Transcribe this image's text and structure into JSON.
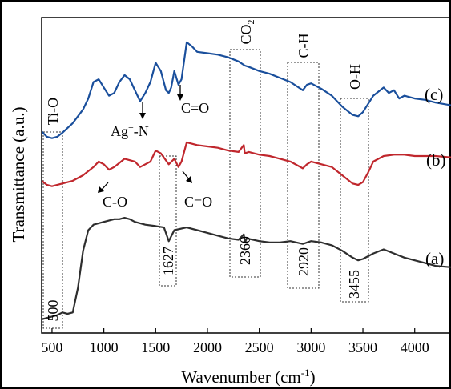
{
  "chart_data": {
    "type": "line",
    "title": "",
    "xlabel": "Wavenumber",
    "xlabel_unit": "(cm",
    "xlabel_unit_exp": "-1",
    "xlabel_unit_close": ")",
    "ylabel": "Transmittance (a.u.)",
    "xlim": [
      400,
      4350
    ],
    "x_ticks": [
      500,
      1000,
      1500,
      2000,
      2500,
      3000,
      3500,
      4000
    ],
    "x_tick_labels": [
      "500",
      "1000",
      "1500",
      "2000",
      "2500",
      "3000",
      "3500",
      "4000"
    ],
    "y_ticks_shown": false,
    "series": [
      {
        "name": "(a)",
        "color": "#2e2e2e",
        "points": [
          [
            400,
            0.05
          ],
          [
            450,
            0.06
          ],
          [
            500,
            0.07
          ],
          [
            550,
            0.08
          ],
          [
            600,
            0.1
          ],
          [
            650,
            0.09
          ],
          [
            700,
            0.1
          ],
          [
            750,
            0.28
          ],
          [
            800,
            0.55
          ],
          [
            850,
            0.7
          ],
          [
            900,
            0.74
          ],
          [
            1000,
            0.76
          ],
          [
            1100,
            0.78
          ],
          [
            1150,
            0.78
          ],
          [
            1200,
            0.79
          ],
          [
            1250,
            0.78
          ],
          [
            1300,
            0.76
          ],
          [
            1400,
            0.74
          ],
          [
            1500,
            0.73
          ],
          [
            1580,
            0.72
          ],
          [
            1627,
            0.62
          ],
          [
            1680,
            0.7
          ],
          [
            1800,
            0.72
          ],
          [
            1900,
            0.7
          ],
          [
            2000,
            0.68
          ],
          [
            2100,
            0.66
          ],
          [
            2200,
            0.64
          ],
          [
            2300,
            0.63
          ],
          [
            2350,
            0.67
          ],
          [
            2360,
            0.61
          ],
          [
            2380,
            0.64
          ],
          [
            2500,
            0.62
          ],
          [
            2600,
            0.61
          ],
          [
            2700,
            0.61
          ],
          [
            2800,
            0.62
          ],
          [
            2920,
            0.6
          ],
          [
            3000,
            0.62
          ],
          [
            3100,
            0.61
          ],
          [
            3200,
            0.59
          ],
          [
            3300,
            0.55
          ],
          [
            3400,
            0.5
          ],
          [
            3455,
            0.48
          ],
          [
            3500,
            0.49
          ],
          [
            3600,
            0.53
          ],
          [
            3700,
            0.56
          ],
          [
            3800,
            0.53
          ],
          [
            3900,
            0.5
          ],
          [
            4000,
            0.48
          ],
          [
            4100,
            0.46
          ],
          [
            4200,
            0.44
          ],
          [
            4350,
            0.43
          ]
        ]
      },
      {
        "name": "(b)",
        "color": "#c0272d",
        "points": [
          [
            400,
            1.06
          ],
          [
            450,
            1.03
          ],
          [
            500,
            1.02
          ],
          [
            600,
            1.04
          ],
          [
            700,
            1.06
          ],
          [
            800,
            1.1
          ],
          [
            900,
            1.16
          ],
          [
            950,
            1.2
          ],
          [
            1000,
            1.18
          ],
          [
            1050,
            1.14
          ],
          [
            1100,
            1.16
          ],
          [
            1150,
            1.19
          ],
          [
            1200,
            1.22
          ],
          [
            1250,
            1.21
          ],
          [
            1300,
            1.2
          ],
          [
            1350,
            1.16
          ],
          [
            1400,
            1.18
          ],
          [
            1450,
            1.2
          ],
          [
            1500,
            1.28
          ],
          [
            1550,
            1.26
          ],
          [
            1627,
            1.18
          ],
          [
            1680,
            1.22
          ],
          [
            1720,
            1.16
          ],
          [
            1750,
            1.2
          ],
          [
            1800,
            1.34
          ],
          [
            1900,
            1.32
          ],
          [
            2000,
            1.31
          ],
          [
            2100,
            1.3
          ],
          [
            2200,
            1.28
          ],
          [
            2300,
            1.27
          ],
          [
            2350,
            1.32
          ],
          [
            2360,
            1.26
          ],
          [
            2400,
            1.27
          ],
          [
            2500,
            1.25
          ],
          [
            2600,
            1.24
          ],
          [
            2700,
            1.22
          ],
          [
            2800,
            1.2
          ],
          [
            2920,
            1.15
          ],
          [
            2960,
            1.18
          ],
          [
            3000,
            1.2
          ],
          [
            3100,
            1.18
          ],
          [
            3200,
            1.16
          ],
          [
            3300,
            1.1
          ],
          [
            3400,
            1.04
          ],
          [
            3455,
            1.03
          ],
          [
            3500,
            1.05
          ],
          [
            3550,
            1.12
          ],
          [
            3600,
            1.2
          ],
          [
            3700,
            1.24
          ],
          [
            3800,
            1.25
          ],
          [
            3900,
            1.25
          ],
          [
            4000,
            1.24
          ],
          [
            4100,
            1.24
          ],
          [
            4200,
            1.24
          ],
          [
            4350,
            1.23
          ]
        ]
      },
      {
        "name": "(c)",
        "color": "#1a4f9c",
        "points": [
          [
            400,
            1.42
          ],
          [
            450,
            1.38
          ],
          [
            500,
            1.37
          ],
          [
            550,
            1.38
          ],
          [
            600,
            1.41
          ],
          [
            700,
            1.48
          ],
          [
            800,
            1.58
          ],
          [
            850,
            1.66
          ],
          [
            900,
            1.78
          ],
          [
            950,
            1.8
          ],
          [
            1000,
            1.74
          ],
          [
            1050,
            1.68
          ],
          [
            1100,
            1.7
          ],
          [
            1150,
            1.78
          ],
          [
            1200,
            1.83
          ],
          [
            1250,
            1.8
          ],
          [
            1300,
            1.72
          ],
          [
            1350,
            1.64
          ],
          [
            1400,
            1.7
          ],
          [
            1450,
            1.78
          ],
          [
            1500,
            1.92
          ],
          [
            1550,
            1.86
          ],
          [
            1600,
            1.72
          ],
          [
            1627,
            1.7
          ],
          [
            1650,
            1.74
          ],
          [
            1680,
            1.86
          ],
          [
            1720,
            1.76
          ],
          [
            1750,
            1.8
          ],
          [
            1800,
            2.07
          ],
          [
            1850,
            2.04
          ],
          [
            1900,
            2.0
          ],
          [
            2000,
            1.99
          ],
          [
            2100,
            1.98
          ],
          [
            2200,
            1.96
          ],
          [
            2300,
            1.93
          ],
          [
            2360,
            1.9
          ],
          [
            2400,
            1.89
          ],
          [
            2500,
            1.86
          ],
          [
            2600,
            1.84
          ],
          [
            2700,
            1.81
          ],
          [
            2800,
            1.78
          ],
          [
            2920,
            1.72
          ],
          [
            2960,
            1.76
          ],
          [
            3000,
            1.77
          ],
          [
            3100,
            1.73
          ],
          [
            3200,
            1.68
          ],
          [
            3300,
            1.6
          ],
          [
            3400,
            1.54
          ],
          [
            3455,
            1.53
          ],
          [
            3500,
            1.56
          ],
          [
            3600,
            1.68
          ],
          [
            3700,
            1.74
          ],
          [
            3750,
            1.7
          ],
          [
            3800,
            1.72
          ],
          [
            3850,
            1.66
          ],
          [
            3900,
            1.68
          ],
          [
            4000,
            1.66
          ],
          [
            4100,
            1.65
          ],
          [
            4200,
            1.63
          ],
          [
            4350,
            1.61
          ]
        ]
      }
    ],
    "series_labels": [
      "(a)",
      "(b)",
      "(c)"
    ],
    "band_labels": [
      "500",
      "1627",
      "2360",
      "2920",
      "3455"
    ],
    "group_labels": [
      "Ti-O",
      "CO",
      "C-H",
      "O-H"
    ],
    "co2_subscript": "2",
    "annotations": {
      "ag": "Ag",
      "ag_sup": "+",
      "ag_rest": "-N",
      "co_c": "C=O",
      "co_b1": "C-O",
      "co_b2": "C=O"
    },
    "grid": false,
    "legend": "none"
  }
}
